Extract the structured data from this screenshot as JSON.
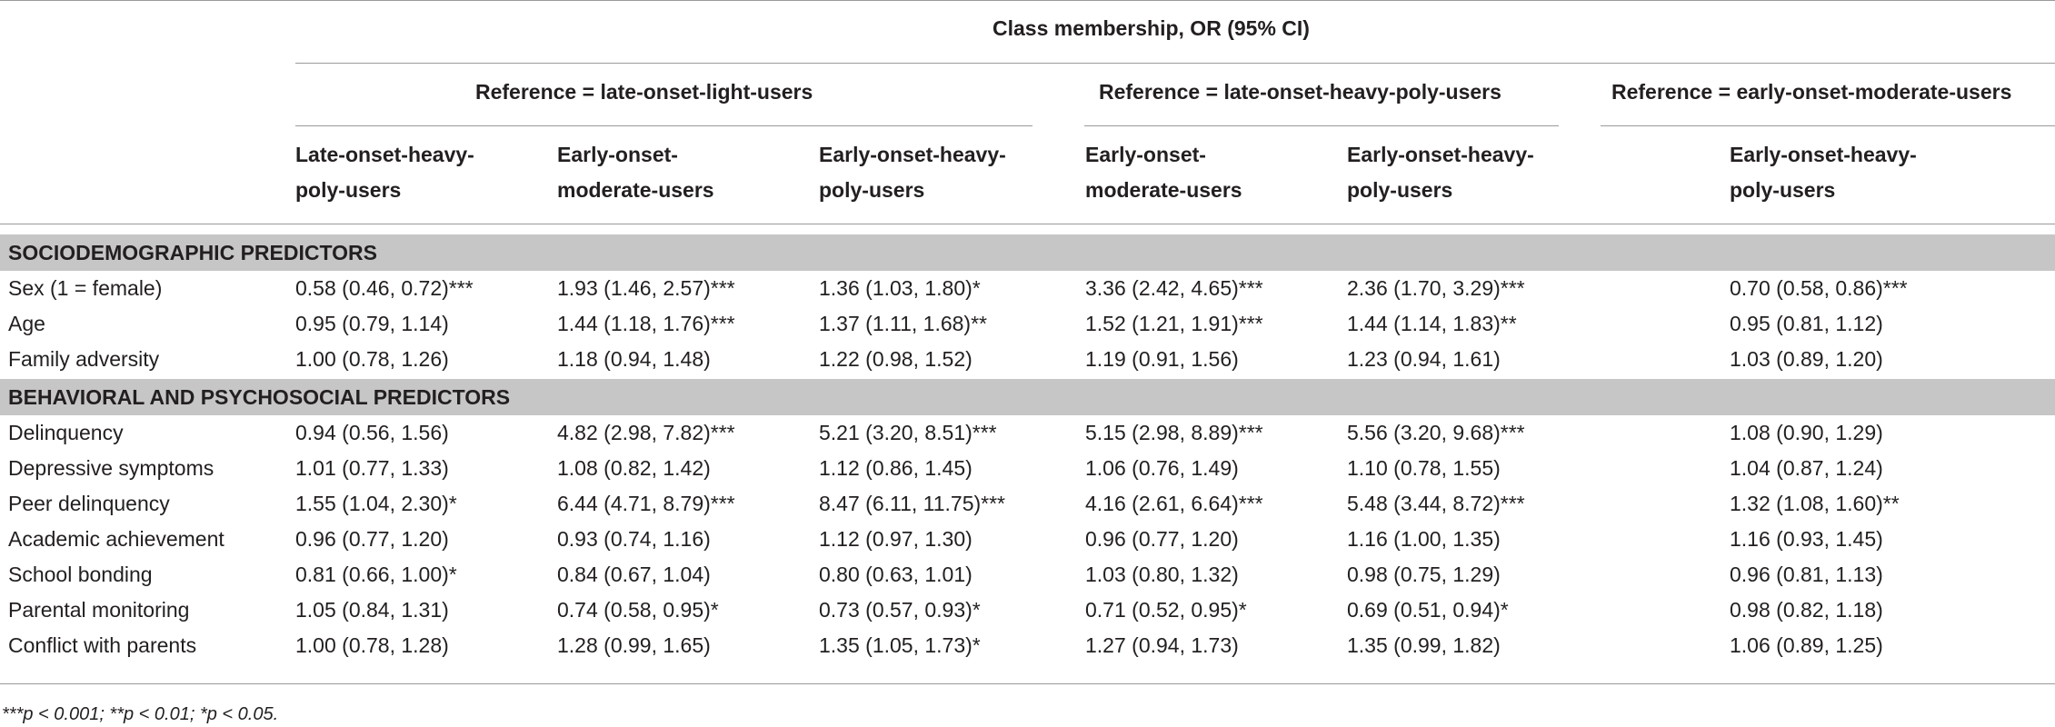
{
  "table": {
    "spanner": "Class membership, OR (95% CI)",
    "groups": [
      "Reference = late-onset-light-users",
      "Reference = late-onset-heavy-poly-users",
      "Reference = early-onset-moderate-users"
    ],
    "columns": [
      {
        "line1": "Late-onset-heavy-",
        "line2": "poly-users"
      },
      {
        "line1": "Early-onset-",
        "line2": "moderate-users"
      },
      {
        "line1": "Early-onset-heavy-",
        "line2": "poly-users"
      },
      {
        "line1": "Early-onset-",
        "line2": "moderate-users"
      },
      {
        "line1": "Early-onset-heavy-",
        "line2": "poly-users"
      },
      {
        "line1": "Early-onset-heavy-",
        "line2": "poly-users"
      }
    ],
    "sections": [
      {
        "title": "SOCIODEMOGRAPHIC PREDICTORS",
        "rows": [
          {
            "label": "Sex (1 = female)",
            "cells": [
              "0.58 (0.46, 0.72)***",
              "1.93 (1.46, 2.57)***",
              "1.36 (1.03, 1.80)*",
              "3.36 (2.42, 4.65)***",
              "2.36 (1.70, 3.29)***",
              "0.70 (0.58, 0.86)***"
            ]
          },
          {
            "label": "Age",
            "cells": [
              "0.95 (0.79, 1.14)",
              "1.44 (1.18, 1.76)***",
              "1.37 (1.11, 1.68)**",
              "1.52 (1.21, 1.91)***",
              "1.44 (1.14, 1.83)**",
              "0.95 (0.81, 1.12)"
            ]
          },
          {
            "label": "Family adversity",
            "cells": [
              "1.00 (0.78, 1.26)",
              "1.18 (0.94, 1.48)",
              "1.22 (0.98, 1.52)",
              "1.19 (0.91, 1.56)",
              "1.23 (0.94, 1.61)",
              "1.03 (0.89, 1.20)"
            ]
          }
        ]
      },
      {
        "title": "BEHAVIORAL AND PSYCHOSOCIAL PREDICTORS",
        "rows": [
          {
            "label": "Delinquency",
            "cells": [
              "0.94 (0.56, 1.56)",
              "4.82 (2.98, 7.82)***",
              "5.21 (3.20, 8.51)***",
              "5.15 (2.98, 8.89)***",
              "5.56 (3.20, 9.68)***",
              "1.08 (0.90, 1.29)"
            ]
          },
          {
            "label": "Depressive symptoms",
            "cells": [
              "1.01 (0.77, 1.33)",
              "1.08 (0.82, 1.42)",
              "1.12 (0.86, 1.45)",
              "1.06 (0.76, 1.49)",
              "1.10 (0.78, 1.55)",
              "1.04 (0.87, 1.24)"
            ]
          },
          {
            "label": "Peer delinquency",
            "cells": [
              "1.55 (1.04, 2.30)*",
              "6.44 (4.71, 8.79)***",
              "8.47 (6.11, 11.75)***",
              "4.16 (2.61, 6.64)***",
              "5.48 (3.44, 8.72)***",
              "1.32 (1.08, 1.60)**"
            ]
          },
          {
            "label": "Academic achievement",
            "cells": [
              "0.96 (0.77, 1.20)",
              "0.93 (0.74, 1.16)",
              "1.12 (0.97, 1.30)",
              "0.96 (0.77, 1.20)",
              "1.16 (1.00, 1.35)",
              "1.16 (0.93, 1.45)"
            ]
          },
          {
            "label": "School bonding",
            "cells": [
              "0.81 (0.66, 1.00)*",
              "0.84 (0.67, 1.04)",
              "0.80 (0.63, 1.01)",
              "1.03 (0.80, 1.32)",
              "0.98 (0.75, 1.29)",
              "0.96 (0.81, 1.13)"
            ]
          },
          {
            "label": "Parental monitoring",
            "cells": [
              "1.05 (0.84, 1.31)",
              "0.74 (0.58, 0.95)*",
              "0.73 (0.57, 0.93)*",
              "0.71 (0.52, 0.95)*",
              "0.69 (0.51, 0.94)*",
              "0.98 (0.82, 1.18)"
            ]
          },
          {
            "label": "Conflict with parents",
            "cells": [
              "1.00 (0.78, 1.28)",
              "1.28 (0.99, 1.65)",
              "1.35 (1.05, 1.73)*",
              "1.27 (0.94, 1.73)",
              "1.35 (0.99, 1.82)",
              "1.06 (0.89, 1.25)"
            ]
          }
        ]
      }
    ],
    "footnote": "***p < 0.001; **p < 0.01; *p < 0.05."
  }
}
